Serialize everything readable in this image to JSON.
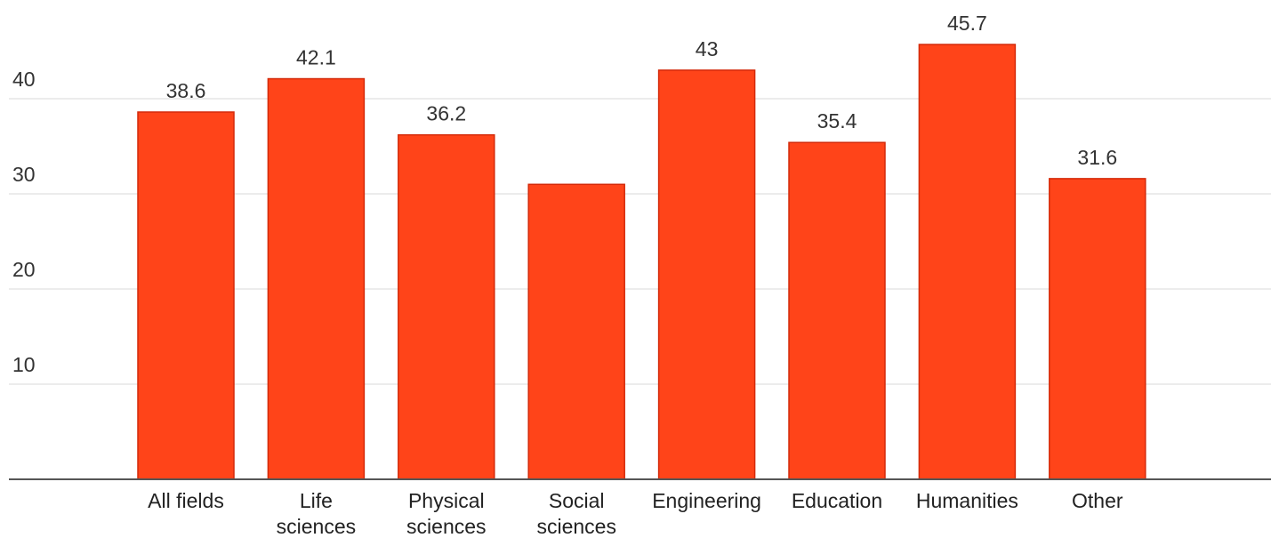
{
  "chart_data": {
    "type": "bar",
    "categories": [
      "All fields",
      "Life sciences",
      "Physical sciences",
      "Social sciences",
      "Engineering",
      "Education",
      "Humanities",
      "Other"
    ],
    "category_lines": [
      [
        "All fields"
      ],
      [
        "Life",
        "sciences"
      ],
      [
        "Physical",
        "sciences"
      ],
      [
        "Social",
        "sciences"
      ],
      [
        "Engineering"
      ],
      [
        "Education"
      ],
      [
        "Humanities"
      ],
      [
        "Other"
      ]
    ],
    "values": [
      38.6,
      42.1,
      36.2,
      31.0,
      43,
      35.4,
      45.7,
      31.6
    ],
    "data_labels": [
      "38.6",
      "42.1",
      "36.2",
      "",
      "43",
      "35.4",
      "45.7",
      "31.6"
    ],
    "y_ticks": [
      10,
      20,
      30,
      40
    ],
    "ylim": [
      0,
      50
    ],
    "grid": true,
    "bar_color": "#ff4419",
    "bar_edge_color": "#d42a0a",
    "title": "",
    "xlabel": "",
    "ylabel": ""
  }
}
